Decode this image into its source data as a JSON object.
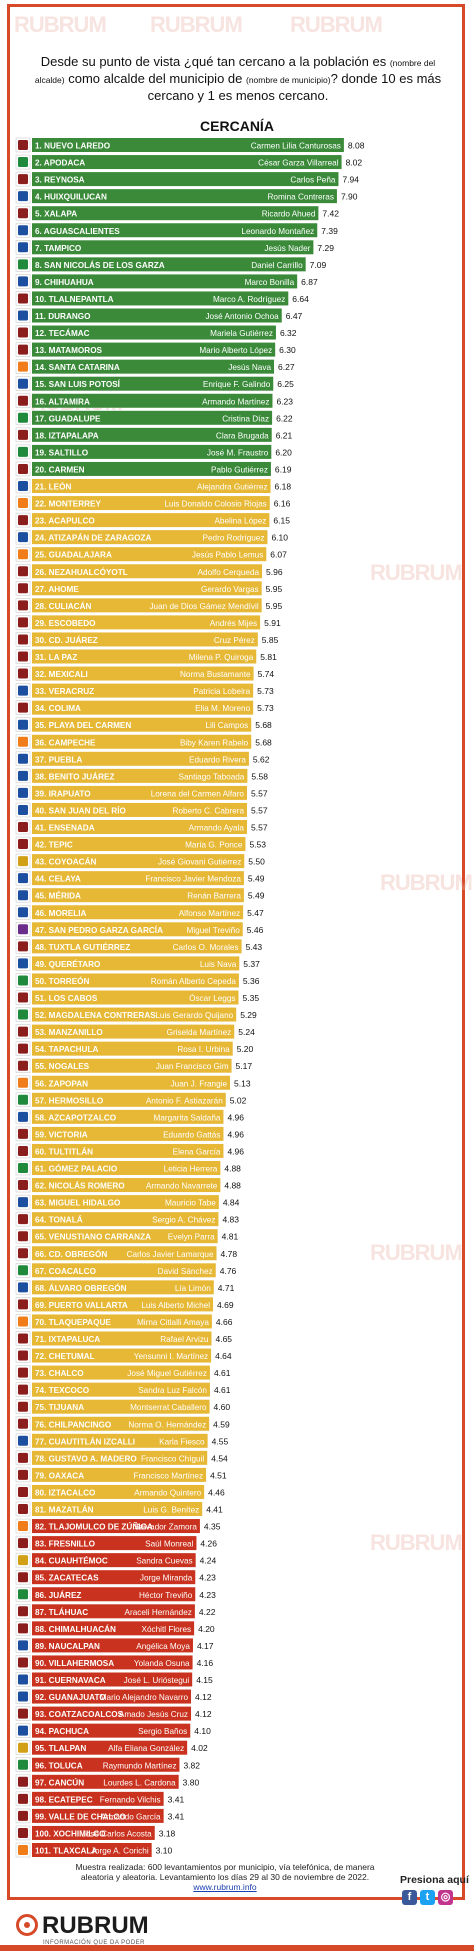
{
  "question": {
    "p1": "Desde su punto de vista ¿qué tan cercano a la población es ",
    "s1": "(nombre del alcalde)",
    "p2": " como alcalde del municipio de ",
    "s2": "(nombre de municipio)",
    "p3": "? donde 10 es más cercano y 1 es menos cercano."
  },
  "colors": {
    "green": "#3a8a3a",
    "yellow": "#e6b836",
    "red": "#c8321e",
    "label_text": "#ffffff",
    "label_text_yellow": "#fffbe6"
  },
  "chart_data": {
    "type": "bar",
    "orientation": "horizontal",
    "title": "CERCANÍA",
    "xlim": [
      0,
      10
    ],
    "rows": [
      {
        "rank": "1.",
        "city": "NUEVO LAREDO",
        "mayor": "Carmen Lilia Canturosas",
        "value": 8.08,
        "color": "green",
        "party": "morena"
      },
      {
        "rank": "2.",
        "city": "APODACA",
        "mayor": "César Garza Villarreal",
        "value": 8.02,
        "color": "green",
        "party": "pri"
      },
      {
        "rank": "3.",
        "city": "REYNOSA",
        "mayor": "Carlos Peña",
        "value": 7.94,
        "color": "green",
        "party": "morena"
      },
      {
        "rank": "4.",
        "city": "HUIXQUILUCAN",
        "mayor": "Romina Contreras",
        "value": 7.9,
        "color": "green",
        "party": "pan"
      },
      {
        "rank": "5.",
        "city": "XALAPA",
        "mayor": "Ricardo Ahued",
        "value": 7.42,
        "color": "green",
        "party": "morena"
      },
      {
        "rank": "6.",
        "city": "AGUASCALIENTES",
        "mayor": "Leonardo Montañez",
        "value": 7.39,
        "color": "green",
        "party": "pan"
      },
      {
        "rank": "7.",
        "city": "TAMPICO",
        "mayor": "Jesús Nader",
        "value": 7.29,
        "color": "green",
        "party": "pan"
      },
      {
        "rank": "8.",
        "city": "SAN NICOLÁS DE LOS GARZA",
        "mayor": "Daniel Carrillo",
        "value": 7.09,
        "color": "green",
        "party": "pri"
      },
      {
        "rank": "9.",
        "city": "CHIHUAHUA",
        "mayor": "Marco Bonilla",
        "value": 6.87,
        "color": "green",
        "party": "pan"
      },
      {
        "rank": "10.",
        "city": "TLALNEPANTLA",
        "mayor": "Marco A. Rodríguez",
        "value": 6.64,
        "color": "green",
        "party": "morena"
      },
      {
        "rank": "11.",
        "city": "DURANGO",
        "mayor": "José Antonio Ochoa",
        "value": 6.47,
        "color": "green",
        "party": "pan"
      },
      {
        "rank": "12.",
        "city": "TECÁMAC",
        "mayor": "Mariela Gutiérrez",
        "value": 6.32,
        "color": "green",
        "party": "morena"
      },
      {
        "rank": "13.",
        "city": "MATAMOROS",
        "mayor": "Mario Alberto López",
        "value": 6.3,
        "color": "green",
        "party": "morena"
      },
      {
        "rank": "14.",
        "city": "SANTA CATARINA",
        "mayor": "Jesús Nava",
        "value": 6.27,
        "color": "green",
        "party": "mc"
      },
      {
        "rank": "15.",
        "city": "SAN LUIS POTOSÍ",
        "mayor": "Enrique F. Galindo",
        "value": 6.25,
        "color": "green",
        "party": "pan"
      },
      {
        "rank": "16.",
        "city": "ALTAMIRA",
        "mayor": "Armando Martínez",
        "value": 6.23,
        "color": "green",
        "party": "morena"
      },
      {
        "rank": "17.",
        "city": "GUADALUPE",
        "mayor": "Cristina Díaz",
        "value": 6.22,
        "color": "green",
        "party": "pri"
      },
      {
        "rank": "18.",
        "city": "IZTAPALAPA",
        "mayor": "Clara Brugada",
        "value": 6.21,
        "color": "green",
        "party": "morena"
      },
      {
        "rank": "19.",
        "city": "SALTILLO",
        "mayor": "José M. Fraustro",
        "value": 6.2,
        "color": "green",
        "party": "pri"
      },
      {
        "rank": "20.",
        "city": "CARMEN",
        "mayor": "Pablo Gutiérrez",
        "value": 6.19,
        "color": "green",
        "party": "morena"
      },
      {
        "rank": "21.",
        "city": "LEÓN",
        "mayor": "Alejandra Gutiérrez",
        "value": 6.18,
        "color": "yellow",
        "party": "pan"
      },
      {
        "rank": "22.",
        "city": "MONTERREY",
        "mayor": "Luis Donaldo Colosio Riojas",
        "value": 6.16,
        "color": "yellow",
        "party": "mc"
      },
      {
        "rank": "23.",
        "city": "ACAPULCO",
        "mayor": "Abelina López",
        "value": 6.15,
        "color": "yellow",
        "party": "morena"
      },
      {
        "rank": "24.",
        "city": "ATIZAPÁN DE ZARAGOZA",
        "mayor": "Pedro Rodríguez",
        "value": 6.1,
        "color": "yellow",
        "party": "pan"
      },
      {
        "rank": "25.",
        "city": "GUADALAJARA",
        "mayor": "Jesús Pablo Lemus",
        "value": 6.07,
        "color": "yellow",
        "party": "mc"
      },
      {
        "rank": "26.",
        "city": "NEZAHUALCÓYOTL",
        "mayor": "Adolfo Cerqueda",
        "value": 5.96,
        "color": "yellow",
        "party": "morena"
      },
      {
        "rank": "27.",
        "city": "AHOME",
        "mayor": "Gerardo Vargas",
        "value": 5.95,
        "color": "yellow",
        "party": "morena"
      },
      {
        "rank": "28.",
        "city": "CULIACÁN",
        "mayor": "Juan de Dios Gámez Mendívil",
        "value": 5.95,
        "color": "yellow",
        "party": "morena"
      },
      {
        "rank": "29.",
        "city": "ESCOBEDO",
        "mayor": "Andrés Mijes",
        "value": 5.91,
        "color": "yellow",
        "party": "morena"
      },
      {
        "rank": "30.",
        "city": "CD. JUÁREZ",
        "mayor": "Cruz Pérez",
        "value": 5.85,
        "color": "yellow",
        "party": "morena"
      },
      {
        "rank": "31.",
        "city": "LA PAZ",
        "mayor": "Milena P. Quiroga",
        "value": 5.81,
        "color": "yellow",
        "party": "morena"
      },
      {
        "rank": "32.",
        "city": "MEXICALI",
        "mayor": "Norma Bustamante",
        "value": 5.74,
        "color": "yellow",
        "party": "morena"
      },
      {
        "rank": "33.",
        "city": "VERACRUZ",
        "mayor": "Patricia Lobeira",
        "value": 5.73,
        "color": "yellow",
        "party": "pan"
      },
      {
        "rank": "34.",
        "city": "COLIMA",
        "mayor": "Elia M. Moreno",
        "value": 5.73,
        "color": "yellow",
        "party": "morena"
      },
      {
        "rank": "35.",
        "city": "PLAYA DEL CARMEN",
        "mayor": "Lili Campos",
        "value": 5.68,
        "color": "yellow",
        "party": "pan"
      },
      {
        "rank": "36.",
        "city": "CAMPECHE",
        "mayor": "Biby Karen Rabelo",
        "value": 5.68,
        "color": "yellow",
        "party": "mc"
      },
      {
        "rank": "37.",
        "city": "PUEBLA",
        "mayor": "Eduardo Rivera",
        "value": 5.62,
        "color": "yellow",
        "party": "pan"
      },
      {
        "rank": "38.",
        "city": "BENITO JUÁREZ",
        "mayor": "Santiago Taboada",
        "value": 5.58,
        "color": "yellow",
        "party": "pan"
      },
      {
        "rank": "39.",
        "city": "IRAPUATO",
        "mayor": "Lorena del Carmen Alfaro",
        "value": 5.57,
        "color": "yellow",
        "party": "pan"
      },
      {
        "rank": "40.",
        "city": "SAN JUAN DEL RÍO",
        "mayor": "Roberto C. Cabrera",
        "value": 5.57,
        "color": "yellow",
        "party": "pan"
      },
      {
        "rank": "41.",
        "city": "ENSENADA",
        "mayor": "Armando Ayala",
        "value": 5.57,
        "color": "yellow",
        "party": "morena"
      },
      {
        "rank": "42.",
        "city": "TEPIC",
        "mayor": "María G. Ponce",
        "value": 5.53,
        "color": "yellow",
        "party": "morena"
      },
      {
        "rank": "43.",
        "city": "COYOACÁN",
        "mayor": "José Giovani Gutiérrez",
        "value": 5.5,
        "color": "yellow",
        "party": "coalicion"
      },
      {
        "rank": "44.",
        "city": "CELAYA",
        "mayor": "Francisco Javier Mendoza",
        "value": 5.49,
        "color": "yellow",
        "party": "pan"
      },
      {
        "rank": "45.",
        "city": "MÉRIDA",
        "mayor": "Renán Barrera",
        "value": 5.49,
        "color": "yellow",
        "party": "pan"
      },
      {
        "rank": "46.",
        "city": "MORELIA",
        "mayor": "Alfonso Martínez",
        "value": 5.47,
        "color": "yellow",
        "party": "pan"
      },
      {
        "rank": "47.",
        "city": "SAN PEDRO GARZA GARCÍA",
        "mayor": "Miguel Treviño",
        "value": 5.46,
        "color": "yellow",
        "party": "independiente"
      },
      {
        "rank": "48.",
        "city": "TUXTLA GUTIÉRREZ",
        "mayor": "Carlos O. Morales",
        "value": 5.43,
        "color": "yellow",
        "party": "morena"
      },
      {
        "rank": "49.",
        "city": "QUERÉTARO",
        "mayor": "Luis Nava",
        "value": 5.37,
        "color": "yellow",
        "party": "pan"
      },
      {
        "rank": "50.",
        "city": "TORREÓN",
        "mayor": "Román Alberto Cepeda",
        "value": 5.36,
        "color": "yellow",
        "party": "pri"
      },
      {
        "rank": "51.",
        "city": "LOS CABOS",
        "mayor": "Óscar Leggs",
        "value": 5.35,
        "color": "yellow",
        "party": "morena"
      },
      {
        "rank": "52.",
        "city": "MAGDALENA CONTRERAS",
        "mayor": "Luis Gerardo Quijano",
        "value": 5.29,
        "color": "yellow",
        "party": "pri"
      },
      {
        "rank": "53.",
        "city": "MANZANILLO",
        "mayor": "Griselda Martínez",
        "value": 5.24,
        "color": "yellow",
        "party": "morena"
      },
      {
        "rank": "54.",
        "city": "TAPACHULA",
        "mayor": "Rosa I. Urbina",
        "value": 5.2,
        "color": "yellow",
        "party": "morena"
      },
      {
        "rank": "55.",
        "city": "NOGALES",
        "mayor": "Juan Francisco Gim",
        "value": 5.17,
        "color": "yellow",
        "party": "morena"
      },
      {
        "rank": "56.",
        "city": "ZAPOPAN",
        "mayor": "Juan J. Frangie",
        "value": 5.13,
        "color": "yellow",
        "party": "mc"
      },
      {
        "rank": "57.",
        "city": "HERMOSILLO",
        "mayor": "Antonio F. Astiazarán",
        "value": 5.02,
        "color": "yellow",
        "party": "pri"
      },
      {
        "rank": "58.",
        "city": "AZCAPOTZALCO",
        "mayor": "Margarita Saldaña",
        "value": 4.96,
        "color": "yellow",
        "party": "pan"
      },
      {
        "rank": "59.",
        "city": "VICTORIA",
        "mayor": "Eduardo Gattás",
        "value": 4.96,
        "color": "yellow",
        "party": "morena"
      },
      {
        "rank": "60.",
        "city": "TULTITLÁN",
        "mayor": "Elena García",
        "value": 4.96,
        "color": "yellow",
        "party": "morena"
      },
      {
        "rank": "61.",
        "city": "GÓMEZ PALACIO",
        "mayor": "Leticia Herrera",
        "value": 4.88,
        "color": "yellow",
        "party": "pri"
      },
      {
        "rank": "62.",
        "city": "NICOLÁS ROMERO",
        "mayor": "Armando Navarrete",
        "value": 4.88,
        "color": "yellow",
        "party": "morena"
      },
      {
        "rank": "63.",
        "city": "MIGUEL HIDALGO",
        "mayor": "Mauricio Tabe",
        "value": 4.84,
        "color": "yellow",
        "party": "pan"
      },
      {
        "rank": "64.",
        "city": "TONALÁ",
        "mayor": "Sergio A. Chávez",
        "value": 4.83,
        "color": "yellow",
        "party": "morena"
      },
      {
        "rank": "65.",
        "city": "VENUSTIANO CARRANZA",
        "mayor": "Evelyn Parra",
        "value": 4.81,
        "color": "yellow",
        "party": "morena"
      },
      {
        "rank": "66.",
        "city": "CD. OBREGÓN",
        "mayor": "Carlos Javier Lamarque",
        "value": 4.78,
        "color": "yellow",
        "party": "morena"
      },
      {
        "rank": "67.",
        "city": "COACALCO",
        "mayor": "David Sánchez",
        "value": 4.76,
        "color": "yellow",
        "party": "pri"
      },
      {
        "rank": "68.",
        "city": "ÁLVARO OBREGÓN",
        "mayor": "Lía Limón",
        "value": 4.71,
        "color": "yellow",
        "party": "pan"
      },
      {
        "rank": "69.",
        "city": "PUERTO VALLARTA",
        "mayor": "Luis Alberto Michel",
        "value": 4.69,
        "color": "yellow",
        "party": "morena"
      },
      {
        "rank": "70.",
        "city": "TLAQUEPAQUE",
        "mayor": "Mirna Citlalli Amaya",
        "value": 4.66,
        "color": "yellow",
        "party": "mc"
      },
      {
        "rank": "71.",
        "city": "IXTAPALUCA",
        "mayor": "Rafael Arvizu",
        "value": 4.65,
        "color": "yellow",
        "party": "morena"
      },
      {
        "rank": "72.",
        "city": "CHETUMAL",
        "mayor": "Yensunni I. Martínez",
        "value": 4.64,
        "color": "yellow",
        "party": "morena"
      },
      {
        "rank": "73.",
        "city": "CHALCO",
        "mayor": "José Miguel Gutiérrez",
        "value": 4.61,
        "color": "yellow",
        "party": "morena"
      },
      {
        "rank": "74.",
        "city": "TEXCOCO",
        "mayor": "Sandra Luz Falcón",
        "value": 4.61,
        "color": "yellow",
        "party": "morena"
      },
      {
        "rank": "75.",
        "city": "TIJUANA",
        "mayor": "Montserrat Caballero",
        "value": 4.6,
        "color": "yellow",
        "party": "morena"
      },
      {
        "rank": "76.",
        "city": "CHILPANCINGO",
        "mayor": "Norma O. Hernández",
        "value": 4.59,
        "color": "yellow",
        "party": "morena"
      },
      {
        "rank": "77.",
        "city": "CUAUTITLÁN IZCALLI",
        "mayor": "Karla Fiesco",
        "value": 4.55,
        "color": "yellow",
        "party": "pan"
      },
      {
        "rank": "78.",
        "city": "GUSTAVO A. MADERO",
        "mayor": "Francisco Chíguil",
        "value": 4.54,
        "color": "yellow",
        "party": "morena"
      },
      {
        "rank": "79.",
        "city": "OAXACA",
        "mayor": "Francisco Martínez",
        "value": 4.51,
        "color": "yellow",
        "party": "morena"
      },
      {
        "rank": "80.",
        "city": "IZTACALCO",
        "mayor": "Armando Quintero",
        "value": 4.46,
        "color": "yellow",
        "party": "morena"
      },
      {
        "rank": "81.",
        "city": "MAZATLÁN",
        "mayor": "Luis G. Benítez",
        "value": 4.41,
        "color": "yellow",
        "party": "morena"
      },
      {
        "rank": "82.",
        "city": "TLAJOMULCO DE ZÚÑIGA",
        "mayor": "Salvador Zamora",
        "value": 4.35,
        "color": "red",
        "party": "mc"
      },
      {
        "rank": "83.",
        "city": "FRESNILLO",
        "mayor": "Saúl Monreal",
        "value": 4.26,
        "color": "red",
        "party": "morena"
      },
      {
        "rank": "84.",
        "city": "CUAUHTÉMOC",
        "mayor": "Sandra Cuevas",
        "value": 4.24,
        "color": "red",
        "party": "coalicion"
      },
      {
        "rank": "85.",
        "city": "ZACATECAS",
        "mayor": "Jorge Miranda",
        "value": 4.23,
        "color": "red",
        "party": "morena"
      },
      {
        "rank": "86.",
        "city": "JUÁREZ",
        "mayor": "Héctor Treviño",
        "value": 4.23,
        "color": "red",
        "party": "pri"
      },
      {
        "rank": "87.",
        "city": "TLÁHUAC",
        "mayor": "Araceli Hernández",
        "value": 4.22,
        "color": "red",
        "party": "morena"
      },
      {
        "rank": "88.",
        "city": "CHIMALHUACÁN",
        "mayor": "Xóchitl Flores",
        "value": 4.2,
        "color": "red",
        "party": "morena"
      },
      {
        "rank": "89.",
        "city": "NAUCALPAN",
        "mayor": "Angélica Moya",
        "value": 4.17,
        "color": "red",
        "party": "pan"
      },
      {
        "rank": "90.",
        "city": "VILLAHERMOSA",
        "mayor": "Yolanda Osuna",
        "value": 4.16,
        "color": "red",
        "party": "morena"
      },
      {
        "rank": "91.",
        "city": "CUERNAVACA",
        "mayor": "José L. Urióstegui",
        "value": 4.15,
        "color": "red",
        "party": "pan"
      },
      {
        "rank": "92.",
        "city": "GUANAJUATO",
        "mayor": "Mario Alejandro Navarro",
        "value": 4.12,
        "color": "red",
        "party": "pan"
      },
      {
        "rank": "93.",
        "city": "COATZACOALCOS",
        "mayor": "Amado Jesús Cruz",
        "value": 4.12,
        "color": "red",
        "party": "morena"
      },
      {
        "rank": "94.",
        "city": "PACHUCA",
        "mayor": "Sergio Baños",
        "value": 4.1,
        "color": "red",
        "party": "pan"
      },
      {
        "rank": "95.",
        "city": "TLALPAN",
        "mayor": "Alfa Eliana González",
        "value": 4.02,
        "color": "red",
        "party": "coalicion"
      },
      {
        "rank": "96.",
        "city": "TOLUCA",
        "mayor": "Raymundo Martínez",
        "value": 3.82,
        "color": "red",
        "party": "pri"
      },
      {
        "rank": "97.",
        "city": "CANCÚN",
        "mayor": "Lourdes L. Cardona",
        "value": 3.8,
        "color": "red",
        "party": "morena"
      },
      {
        "rank": "98.",
        "city": "ECATEPEC",
        "mayor": "Fernando Vilchis",
        "value": 3.41,
        "color": "red",
        "party": "morena"
      },
      {
        "rank": "99.",
        "city": "VALLE DE CHALCO",
        "mayor": "Armando García",
        "value": 3.41,
        "color": "red",
        "party": "morena"
      },
      {
        "rank": "100.",
        "city": "XOCHIMILCO",
        "mayor": "José Carlos Acosta",
        "value": 3.18,
        "color": "red",
        "party": "morena"
      },
      {
        "rank": "101.",
        "city": "TLAXCALA",
        "mayor": "Jorge A. Corichi",
        "value": 3.1,
        "color": "red",
        "party": "mc"
      }
    ]
  },
  "party_colors": {
    "morena": "#8c1d1d",
    "pan": "#1d4fa0",
    "pri": "#1f8a3b",
    "mc": "#f07d1a",
    "coalicion": "#d2a016",
    "independiente": "#6a2d8c"
  },
  "footer": {
    "note": "Muestra realizada: 600 levantamientos por municipio, vía telefónica, de manera aleatoria y aleatoria. Levantamiento los días 29 al 30 de noviembre de 2022.",
    "url": "www.rubrum.info",
    "press_here": "Presiona aquí",
    "logo_text": "RUBRUM",
    "logo_tagline": "INFORMACIÓN QUE DA PODER"
  }
}
